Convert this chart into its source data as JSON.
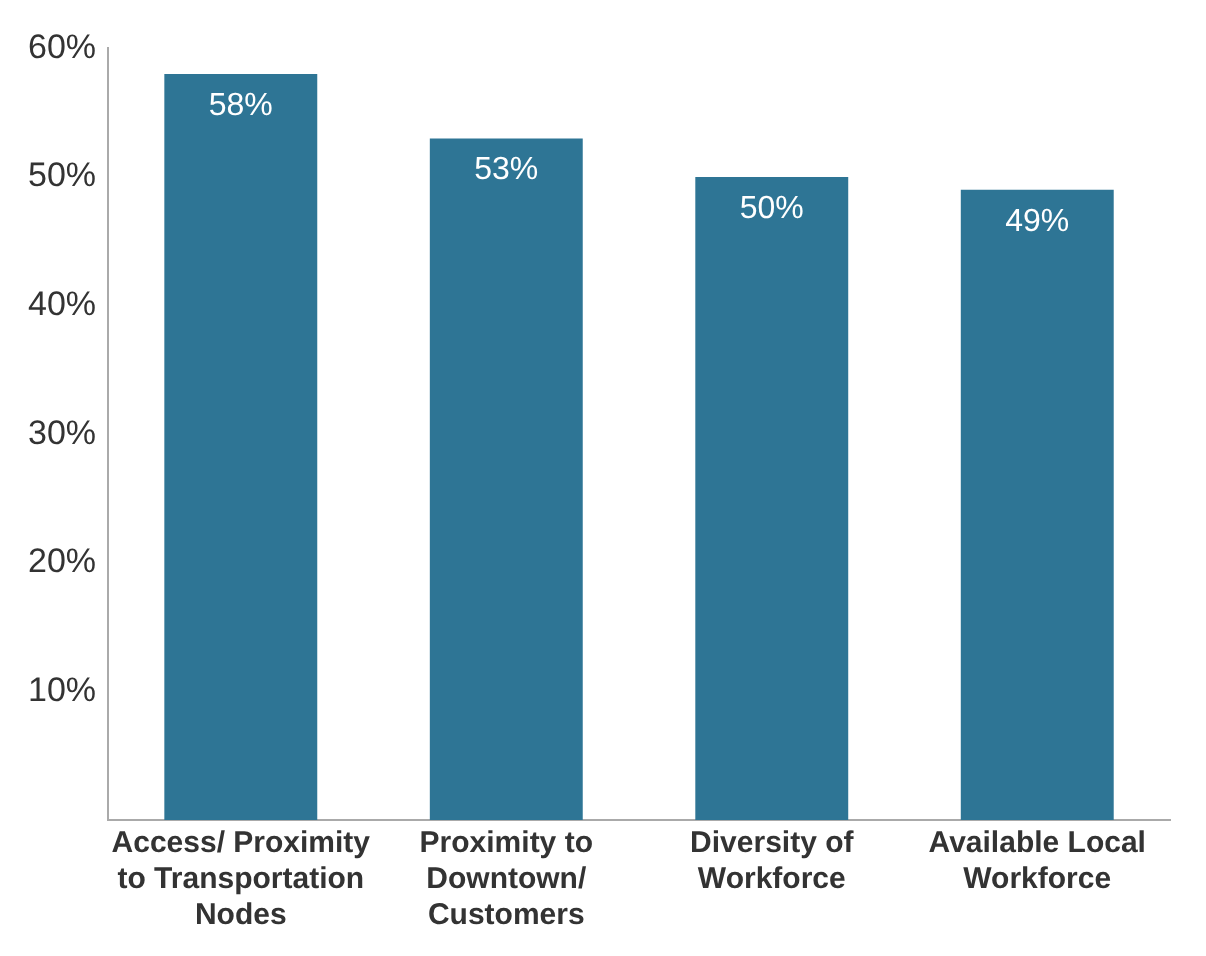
{
  "chart_data": {
    "type": "bar",
    "categories": [
      "Access/ Proximity to Transportation Nodes",
      "Proximity to Downtown/ Customers",
      "Diversity of Workforce",
      "Available Local Workforce"
    ],
    "values": [
      58,
      53,
      50,
      49
    ],
    "value_labels": [
      "58%",
      "53%",
      "50%",
      "49%"
    ],
    "color": "#2e7595",
    "ylim": [
      0,
      60
    ],
    "yticks": [
      {
        "value": 0,
        "label": null
      },
      {
        "value": 10,
        "label": "10%"
      },
      {
        "value": 20,
        "label": "20%"
      },
      {
        "value": 30,
        "label": "30%"
      },
      {
        "value": 40,
        "label": "40%"
      },
      {
        "value": 50,
        "label": "50%"
      },
      {
        "value": 60,
        "label": "60%"
      }
    ],
    "grid": false,
    "legend": false
  }
}
